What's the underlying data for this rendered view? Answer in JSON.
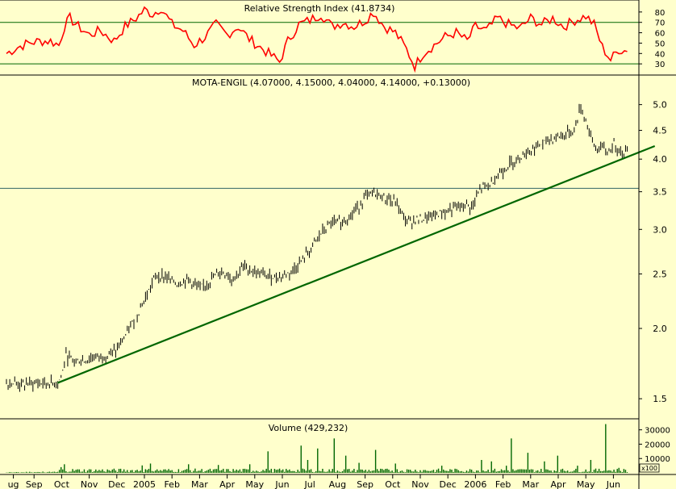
{
  "colors": {
    "background": "#ffffcc",
    "rsi_line": "#ff0000",
    "rsi_ref_line": "#006600",
    "price_bar": "#000000",
    "trendline": "#006600",
    "support_line": "#336666",
    "volume_bar": "#006600"
  },
  "x_axis": {
    "tick_labels": [
      "ug",
      "Sep",
      "Oct",
      "Nov",
      "Dec",
      "2005",
      "Feb",
      "Mar",
      "Apr",
      "May",
      "Jun",
      "Jul",
      "Aug",
      "Sep",
      "Oct",
      "Nov",
      "Dec",
      "2006",
      "Feb",
      "Mar",
      "Apr",
      "May",
      "Jun"
    ],
    "tick_positions": [
      0.25,
      1,
      2,
      3,
      4,
      5,
      6,
      7,
      8,
      9,
      10,
      11,
      12,
      13,
      14,
      15,
      16,
      17,
      18,
      19,
      20,
      21,
      22
    ]
  },
  "chart_data": [
    {
      "type": "line",
      "title": "Relative Strength Index (41.8734)",
      "ylim": [
        20,
        90
      ],
      "ticks": [
        "30",
        "40",
        "50",
        "60",
        "70",
        "80"
      ],
      "tick_values": [
        30,
        40,
        50,
        60,
        70,
        80
      ],
      "reference_levels": [
        30,
        70
      ],
      "keypoints": [
        [
          0,
          40
        ],
        [
          0.4,
          46
        ],
        [
          0.8,
          50
        ],
        [
          1.2,
          52
        ],
        [
          1.6,
          52
        ],
        [
          1.9,
          48
        ],
        [
          2.1,
          66
        ],
        [
          2.3,
          74
        ],
        [
          2.6,
          66
        ],
        [
          3.0,
          58
        ],
        [
          3.4,
          62
        ],
        [
          3.9,
          52
        ],
        [
          4.3,
          66
        ],
        [
          4.7,
          74
        ],
        [
          5.0,
          82
        ],
        [
          5.3,
          78
        ],
        [
          5.6,
          84
        ],
        [
          6.0,
          68
        ],
        [
          6.4,
          62
        ],
        [
          6.8,
          48
        ],
        [
          7.2,
          56
        ],
        [
          7.6,
          68
        ],
        [
          8.0,
          58
        ],
        [
          8.4,
          66
        ],
        [
          8.8,
          54
        ],
        [
          9.2,
          46
        ],
        [
          9.6,
          38
        ],
        [
          9.9,
          32
        ],
        [
          10.2,
          52
        ],
        [
          10.6,
          68
        ],
        [
          11.0,
          72
        ],
        [
          11.4,
          78
        ],
        [
          11.8,
          66
        ],
        [
          12.2,
          70
        ],
        [
          12.6,
          66
        ],
        [
          13.0,
          72
        ],
        [
          13.3,
          80
        ],
        [
          13.7,
          66
        ],
        [
          14.1,
          60
        ],
        [
          14.5,
          44
        ],
        [
          14.8,
          28
        ],
        [
          15.1,
          40
        ],
        [
          15.5,
          48
        ],
        [
          15.9,
          56
        ],
        [
          16.3,
          60
        ],
        [
          16.7,
          52
        ],
        [
          17.0,
          66
        ],
        [
          17.4,
          62
        ],
        [
          17.8,
          74
        ],
        [
          18.2,
          68
        ],
        [
          18.6,
          64
        ],
        [
          19.0,
          74
        ],
        [
          19.4,
          68
        ],
        [
          19.8,
          74
        ],
        [
          20.2,
          66
        ],
        [
          20.6,
          72
        ],
        [
          21.0,
          76
        ],
        [
          21.3,
          68
        ],
        [
          21.6,
          46
        ],
        [
          21.9,
          34
        ],
        [
          22.2,
          44
        ],
        [
          22.55,
          41.87
        ]
      ]
    },
    {
      "type": "line",
      "title": "MOTA-ENGIL (4.07000, 4.15000, 4.04000, 4.14000, +0.13000)",
      "yscale": "log",
      "ylim": [
        1.4,
        5.3
      ],
      "ticks": [
        "1.5",
        "2.0",
        "2.5",
        "3.0",
        "3.5",
        "4.0",
        "4.5",
        "5.0"
      ],
      "tick_values": [
        1.5,
        2.0,
        2.5,
        3.0,
        3.5,
        4.0,
        4.5,
        5.0
      ],
      "support_level": 3.55,
      "trendline": [
        [
          1.85,
          1.6
        ],
        [
          23.5,
          4.22
        ]
      ],
      "keypoints": [
        [
          0,
          1.61
        ],
        [
          0.5,
          1.59
        ],
        [
          1.0,
          1.6
        ],
        [
          1.5,
          1.6
        ],
        [
          1.85,
          1.6
        ],
        [
          2.0,
          1.64
        ],
        [
          2.15,
          1.79
        ],
        [
          2.4,
          1.76
        ],
        [
          2.8,
          1.75
        ],
        [
          3.2,
          1.78
        ],
        [
          3.6,
          1.79
        ],
        [
          4.0,
          1.83
        ],
        [
          4.4,
          1.97
        ],
        [
          4.8,
          2.15
        ],
        [
          5.1,
          2.3
        ],
        [
          5.4,
          2.48
        ],
        [
          5.8,
          2.47
        ],
        [
          6.2,
          2.4
        ],
        [
          6.6,
          2.45
        ],
        [
          7.0,
          2.35
        ],
        [
          7.4,
          2.44
        ],
        [
          7.8,
          2.53
        ],
        [
          8.2,
          2.45
        ],
        [
          8.6,
          2.58
        ],
        [
          9.0,
          2.52
        ],
        [
          9.4,
          2.48
        ],
        [
          9.8,
          2.47
        ],
        [
          10.2,
          2.5
        ],
        [
          10.6,
          2.6
        ],
        [
          11.0,
          2.75
        ],
        [
          11.4,
          2.95
        ],
        [
          11.8,
          3.08
        ],
        [
          12.2,
          3.1
        ],
        [
          12.6,
          3.22
        ],
        [
          13.0,
          3.42
        ],
        [
          13.3,
          3.48
        ],
        [
          13.7,
          3.42
        ],
        [
          14.1,
          3.35
        ],
        [
          14.5,
          3.1
        ],
        [
          14.9,
          3.12
        ],
        [
          15.3,
          3.15
        ],
        [
          15.7,
          3.2
        ],
        [
          16.1,
          3.25
        ],
        [
          16.5,
          3.3
        ],
        [
          16.9,
          3.3
        ],
        [
          17.2,
          3.55
        ],
        [
          17.5,
          3.6
        ],
        [
          17.8,
          3.75
        ],
        [
          18.2,
          3.9
        ],
        [
          18.6,
          4.05
        ],
        [
          19.0,
          4.15
        ],
        [
          19.4,
          4.25
        ],
        [
          19.8,
          4.35
        ],
        [
          20.2,
          4.42
        ],
        [
          20.6,
          4.5
        ],
        [
          20.8,
          4.96
        ],
        [
          21.0,
          4.7
        ],
        [
          21.2,
          4.35
        ],
        [
          21.4,
          4.15
        ],
        [
          21.6,
          4.2
        ],
        [
          21.8,
          4.1
        ],
        [
          22.0,
          4.25
        ],
        [
          22.3,
          4.12
        ],
        [
          22.55,
          4.14
        ]
      ]
    },
    {
      "type": "bar",
      "title": "Volume (429,232)",
      "ylim": [
        0,
        36000
      ],
      "ticks": [
        "10000",
        "20000",
        "30000"
      ],
      "tick_values": [
        10000,
        20000,
        30000
      ],
      "multiplier_label": "x100",
      "spikes": [
        [
          2.0,
          4000
        ],
        [
          2.1,
          6000
        ],
        [
          4.9,
          5200
        ],
        [
          5.2,
          6500
        ],
        [
          6.6,
          6000
        ],
        [
          7.7,
          5500
        ],
        [
          8.8,
          6000
        ],
        [
          9.5,
          15000
        ],
        [
          10.7,
          19000
        ],
        [
          10.9,
          9000
        ],
        [
          11.3,
          17000
        ],
        [
          11.9,
          24000
        ],
        [
          12.3,
          12000
        ],
        [
          12.8,
          7000
        ],
        [
          13.4,
          16000
        ],
        [
          14.1,
          6500
        ],
        [
          15.8,
          5000
        ],
        [
          17.2,
          9000
        ],
        [
          17.6,
          8000
        ],
        [
          18.1,
          5000
        ],
        [
          18.3,
          24000
        ],
        [
          18.9,
          14000
        ],
        [
          19.5,
          8000
        ],
        [
          20.0,
          12000
        ],
        [
          20.7,
          5000
        ],
        [
          21.2,
          9000
        ],
        [
          21.7,
          34000
        ],
        [
          22.2,
          3500
        ]
      ]
    }
  ]
}
